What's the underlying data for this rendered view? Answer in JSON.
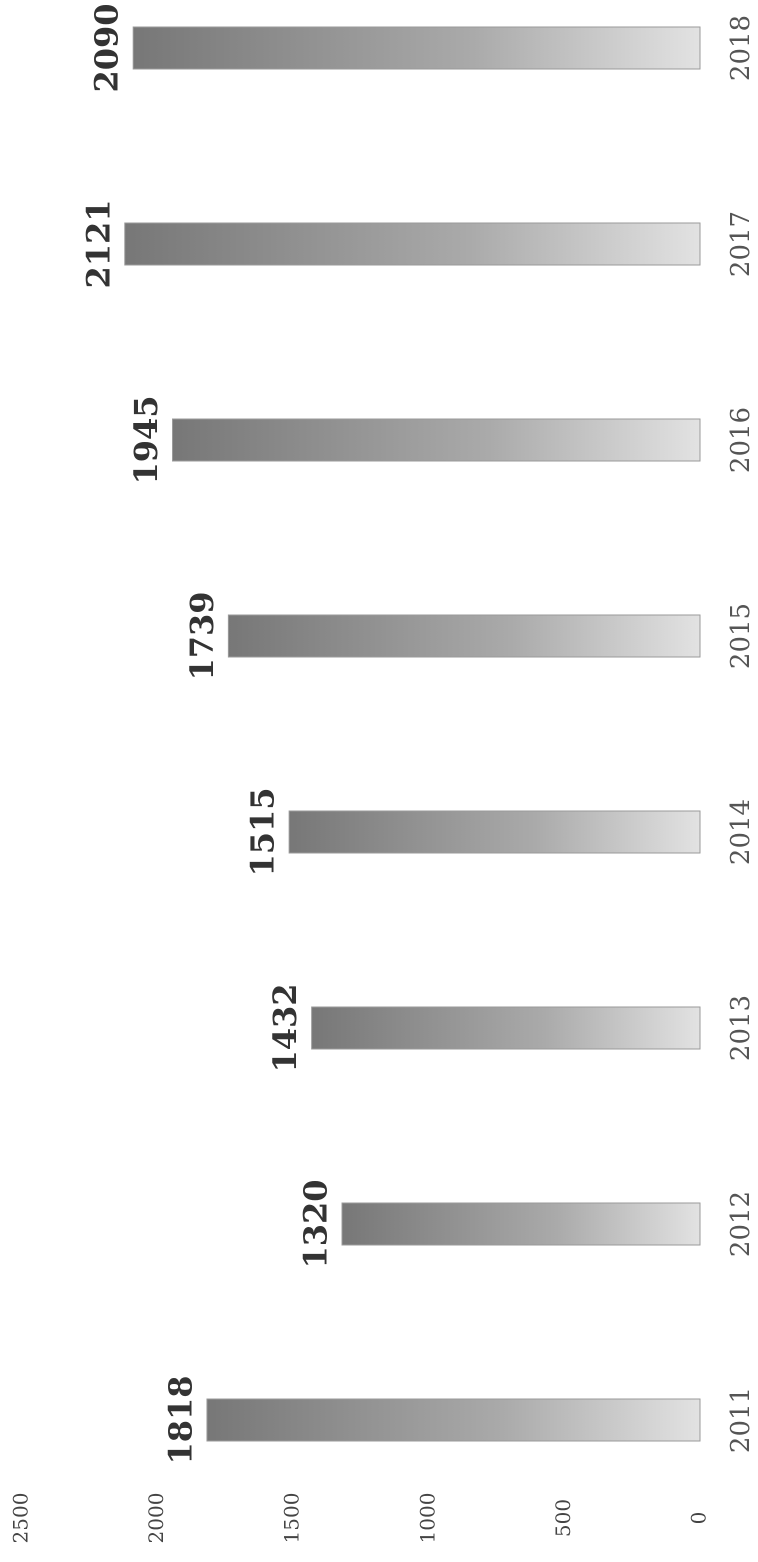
{
  "chart_data": {
    "type": "bar",
    "categories": [
      "2011",
      "2012",
      "2013",
      "2014",
      "2015",
      "2016",
      "2017",
      "2018"
    ],
    "values": [
      1818,
      1320,
      1432,
      1515,
      1739,
      1945,
      2121,
      2090
    ],
    "color": "#9a9a9a",
    "ylim": [
      0,
      2500
    ],
    "yticks": [
      0,
      500,
      1000,
      1500,
      2000,
      2500
    ],
    "grid": false
  }
}
